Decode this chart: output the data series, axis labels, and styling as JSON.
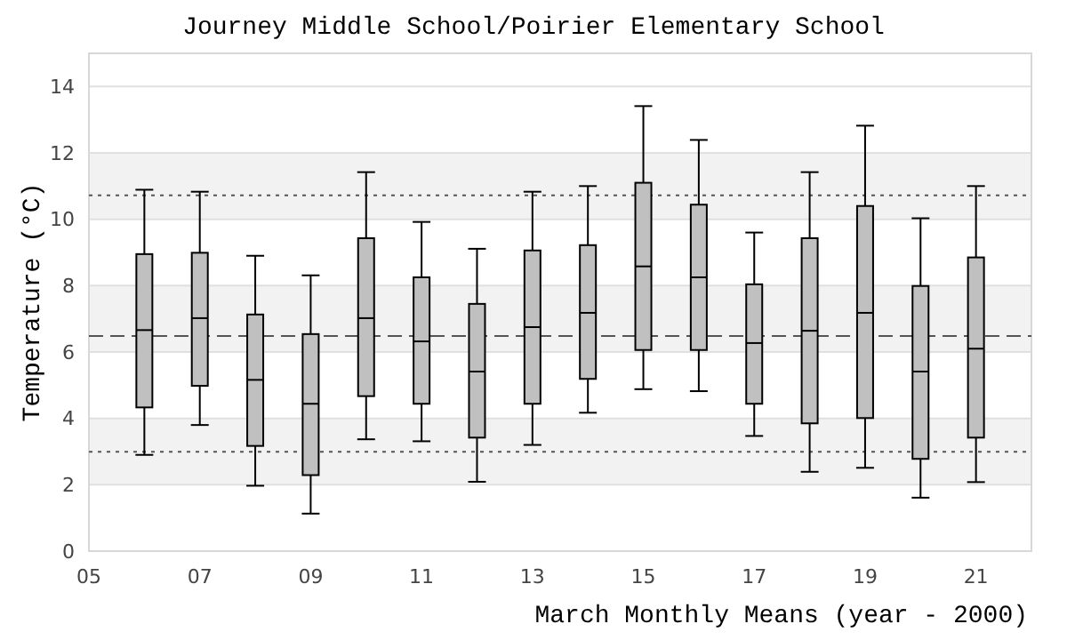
{
  "chart_data": {
    "type": "box",
    "title": "Journey Middle School/Poirier Elementary School",
    "xlabel": "March Monthly Means (year - 2000)",
    "ylabel": "Temperature (°C)",
    "x": [
      6,
      7,
      8,
      9,
      10,
      11,
      12,
      13,
      14,
      15,
      16,
      17,
      18,
      19,
      20,
      21
    ],
    "color": "#c0c0c0",
    "boxes": [
      {
        "low": 2.9,
        "q1": 4.33,
        "median": 6.66,
        "q3": 8.95,
        "high": 10.89
      },
      {
        "low": 3.8,
        "q1": 4.98,
        "median": 7.02,
        "q3": 8.99,
        "high": 10.83
      },
      {
        "low": 1.97,
        "q1": 3.17,
        "median": 5.16,
        "q3": 7.13,
        "high": 8.9
      },
      {
        "low": 1.13,
        "q1": 2.29,
        "median": 4.44,
        "q3": 6.54,
        "high": 8.31
      },
      {
        "low": 3.37,
        "q1": 4.67,
        "median": 7.02,
        "q3": 9.43,
        "high": 11.42
      },
      {
        "low": 3.31,
        "q1": 4.44,
        "median": 6.32,
        "q3": 8.25,
        "high": 9.92
      },
      {
        "low": 2.09,
        "q1": 3.42,
        "median": 5.41,
        "q3": 7.45,
        "high": 9.11
      },
      {
        "low": 3.2,
        "q1": 4.44,
        "median": 6.75,
        "q3": 9.06,
        "high": 10.83
      },
      {
        "low": 4.17,
        "q1": 5.19,
        "median": 7.18,
        "q3": 9.22,
        "high": 11.0
      },
      {
        "low": 4.88,
        "q1": 6.06,
        "median": 8.58,
        "q3": 11.1,
        "high": 13.41
      },
      {
        "low": 4.82,
        "q1": 6.06,
        "median": 8.25,
        "q3": 10.44,
        "high": 12.39
      },
      {
        "low": 3.47,
        "q1": 4.44,
        "median": 6.27,
        "q3": 8.04,
        "high": 9.6
      },
      {
        "low": 2.39,
        "q1": 3.85,
        "median": 6.64,
        "q3": 9.43,
        "high": 11.42
      },
      {
        "low": 2.51,
        "q1": 4.01,
        "median": 7.18,
        "q3": 10.4,
        "high": 12.82
      },
      {
        "low": 1.61,
        "q1": 2.78,
        "median": 5.41,
        "q3": 7.99,
        "high": 10.03
      },
      {
        "low": 2.08,
        "q1": 3.42,
        "median": 6.1,
        "q3": 8.85,
        "high": 11.0
      }
    ],
    "xlim": [
      5,
      22
    ],
    "ylim": [
      0,
      15
    ],
    "xticks": [
      {
        "value": 5,
        "label": "05"
      },
      {
        "value": 7,
        "label": "07"
      },
      {
        "value": 9,
        "label": "09"
      },
      {
        "value": 11,
        "label": "11"
      },
      {
        "value": 13,
        "label": "13"
      },
      {
        "value": 15,
        "label": "15"
      },
      {
        "value": 17,
        "label": "17"
      },
      {
        "value": 19,
        "label": "19"
      },
      {
        "value": 21,
        "label": "21"
      }
    ],
    "yticks": [
      0,
      2,
      4,
      6,
      8,
      10,
      12,
      14
    ],
    "grid": "y",
    "bands": [
      {
        "axis": "y",
        "from": 2,
        "to": 4,
        "color": "#f2f2f2"
      },
      {
        "axis": "y",
        "from": 6,
        "to": 8,
        "color": "#f2f2f2"
      },
      {
        "axis": "y",
        "from": 10,
        "to": 12,
        "color": "#f2f2f2"
      }
    ],
    "ref_lines": [
      {
        "axis": "y",
        "value": 10.72,
        "line_style": "dotted",
        "color": "#555555"
      },
      {
        "axis": "y",
        "value": 6.48,
        "line_style": "dashed",
        "color": "#555555"
      },
      {
        "axis": "y",
        "value": 2.99,
        "line_style": "dotted",
        "color": "#555555"
      }
    ]
  }
}
